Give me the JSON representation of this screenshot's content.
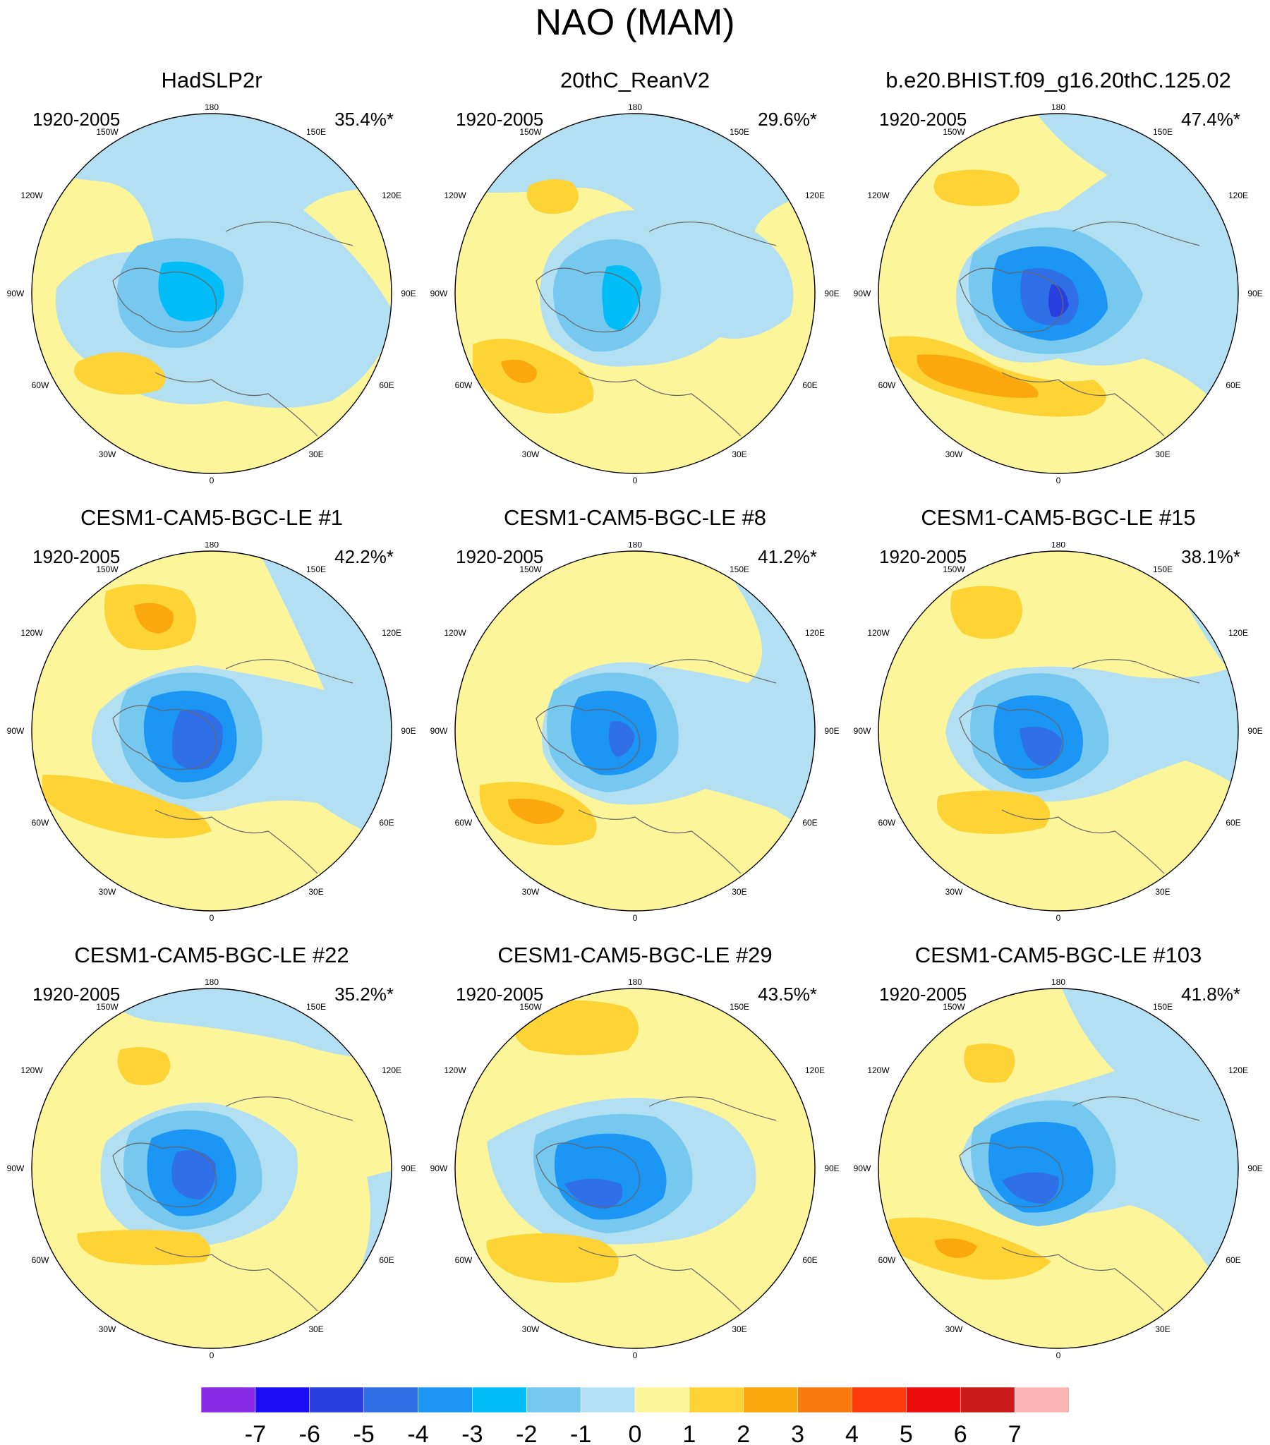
{
  "title": "NAO (MAM)",
  "lon_labels": [
    "180",
    "150E",
    "120E",
    "90E",
    "60E",
    "30E",
    "0",
    "30W",
    "60W",
    "90W",
    "120W",
    "150W"
  ],
  "panels": [
    {
      "title": "HadSLP2r",
      "period": "1920-2005",
      "pct": "35.4%*"
    },
    {
      "title": "20thC_ReanV2",
      "period": "1920-2005",
      "pct": "29.6%*"
    },
    {
      "title": "b.e20.BHIST.f09_g16.20thC.125.02",
      "period": "1920-2005",
      "pct": "47.4%*"
    },
    {
      "title": "CESM1-CAM5-BGC-LE #1",
      "period": "1920-2005",
      "pct": "42.2%*"
    },
    {
      "title": "CESM1-CAM5-BGC-LE #8",
      "period": "1920-2005",
      "pct": "41.2%*"
    },
    {
      "title": "CESM1-CAM5-BGC-LE #15",
      "period": "1920-2005",
      "pct": "38.1%*"
    },
    {
      "title": "CESM1-CAM5-BGC-LE #22",
      "period": "1920-2005",
      "pct": "35.2%*"
    },
    {
      "title": "CESM1-CAM5-BGC-LE #29",
      "period": "1920-2005",
      "pct": "43.5%*"
    },
    {
      "title": "CESM1-CAM5-BGC-LE #103",
      "period": "1920-2005",
      "pct": "41.8%*"
    }
  ],
  "colorbar": {
    "labels": [
      "-7",
      "-6",
      "-5",
      "-4",
      "-3",
      "-2",
      "-1",
      "0",
      "1",
      "2",
      "3",
      "4",
      "5",
      "6",
      "7"
    ],
    "colors": [
      "#8a2be8",
      "#1a0df5",
      "#2a3fe0",
      "#2f6fe8",
      "#1c96f5",
      "#00bdf7",
      "#76c8ee",
      "#b3dff2",
      "#fdf59a",
      "#fdd335",
      "#fba80e",
      "#fb7a0e",
      "#fc3a0c",
      "#ee0d0d",
      "#cc1b1b",
      "#fbb4b4"
    ]
  },
  "colors": {
    "background_positive": "#fdf59a",
    "light_negative": "#b3dff2",
    "coast": "#666666"
  }
}
